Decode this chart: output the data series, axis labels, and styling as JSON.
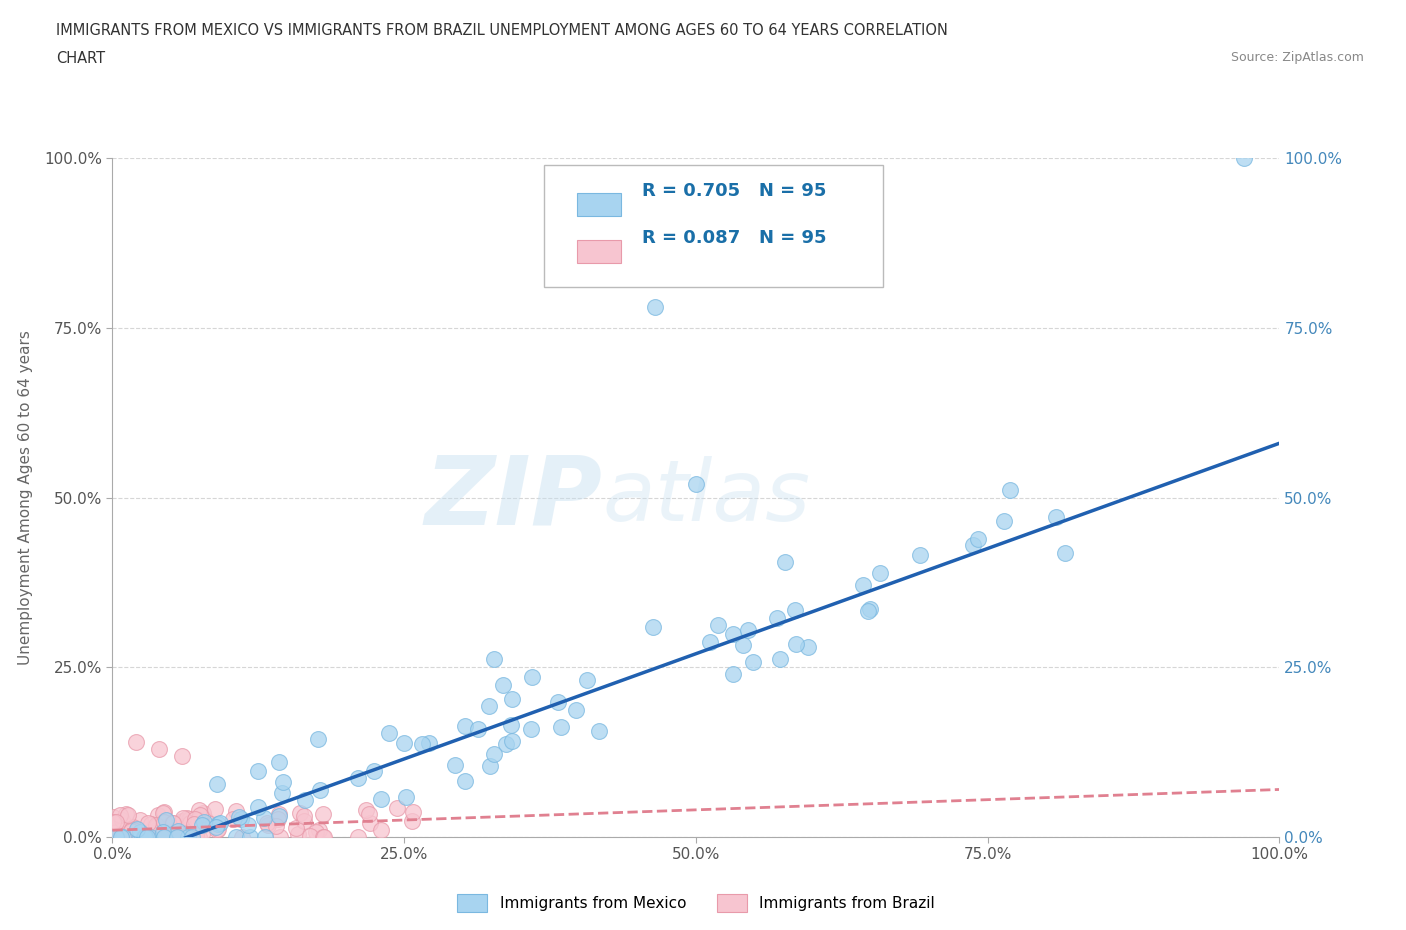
{
  "title_line1": "IMMIGRANTS FROM MEXICO VS IMMIGRANTS FROM BRAZIL UNEMPLOYMENT AMONG AGES 60 TO 64 YEARS CORRELATION",
  "title_line2": "CHART",
  "source_text": "Source: ZipAtlas.com",
  "ylabel": "Unemployment Among Ages 60 to 64 years",
  "xlim": [
    0.0,
    1.0
  ],
  "ylim": [
    0.0,
    1.0
  ],
  "xtick_labels": [
    "0.0%",
    "25.0%",
    "50.0%",
    "75.0%",
    "100.0%"
  ],
  "xtick_positions": [
    0.0,
    0.25,
    0.5,
    0.75,
    1.0
  ],
  "ytick_labels": [
    "0.0%",
    "25.0%",
    "50.0%",
    "75.0%",
    "100.0%"
  ],
  "ytick_positions": [
    0.0,
    0.25,
    0.5,
    0.75,
    1.0
  ],
  "mexico_color": "#a8d4f0",
  "mexico_edge_color": "#7ab8e0",
  "brazil_color": "#f7c5d0",
  "brazil_edge_color": "#e89aaa",
  "mexico_line_color": "#2060b0",
  "brazil_line_color": "#e08090",
  "R_mexico": 0.705,
  "R_brazil": 0.087,
  "N_mexico": 95,
  "N_brazil": 95,
  "watermark_zip": "ZIP",
  "watermark_atlas": "atlas",
  "legend_label_mexico": "Immigrants from Mexico",
  "legend_label_brazil": "Immigrants from Brazil",
  "right_tick_color": "#4488bb",
  "mexico_slope": 0.62,
  "mexico_intercept": -0.04,
  "brazil_slope": 0.06,
  "brazil_intercept": 0.01
}
